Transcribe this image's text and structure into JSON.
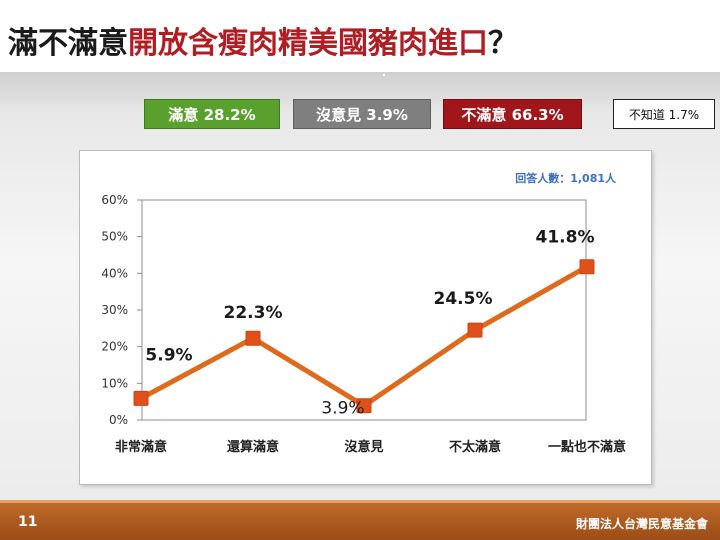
{
  "slide": {
    "title_black": "滿不滿意",
    "title_red": "開放含瘦肉精美國豬肉進口",
    "title_suffix": "？",
    "page_number": "11",
    "organization": "財團法人台灣民意基金會"
  },
  "summary_badges": {
    "satisfied": "滿意 28.2%",
    "neutral": "沒意見 3.9%",
    "dissatisfied": "不滿意 66.3%",
    "unknown": "不知道 1.7%"
  },
  "colors": {
    "line": "#e06a1b",
    "marker": "#e0501b",
    "title_red": "#b01e23",
    "satisfied": "#5aa02c",
    "neutral": "#7f7f7f",
    "dissatisfied": "#a0161b",
    "respondents_text": "#3a6fc4"
  },
  "chart_data": {
    "type": "line",
    "title": "",
    "xlabel": "",
    "ylabel": "",
    "annotation": "回答人數：1,081人",
    "categories": [
      "非常滿意",
      "還算滿意",
      "沒意見",
      "不太滿意",
      "一點也不滿意"
    ],
    "series": [
      {
        "values": [
          5.9,
          22.3,
          3.9,
          24.5,
          41.8
        ],
        "labels": [
          "5.9%",
          "22.3%",
          "3.9%",
          "24.5%",
          "41.8%"
        ]
      }
    ],
    "ylim": [
      0,
      60
    ],
    "yticks": [
      0,
      10,
      20,
      30,
      40,
      50,
      60
    ],
    "ytick_labels": [
      "0%",
      "10%",
      "20%",
      "30%",
      "40%",
      "50%",
      "60%"
    ],
    "grid": false,
    "legend": "none"
  }
}
